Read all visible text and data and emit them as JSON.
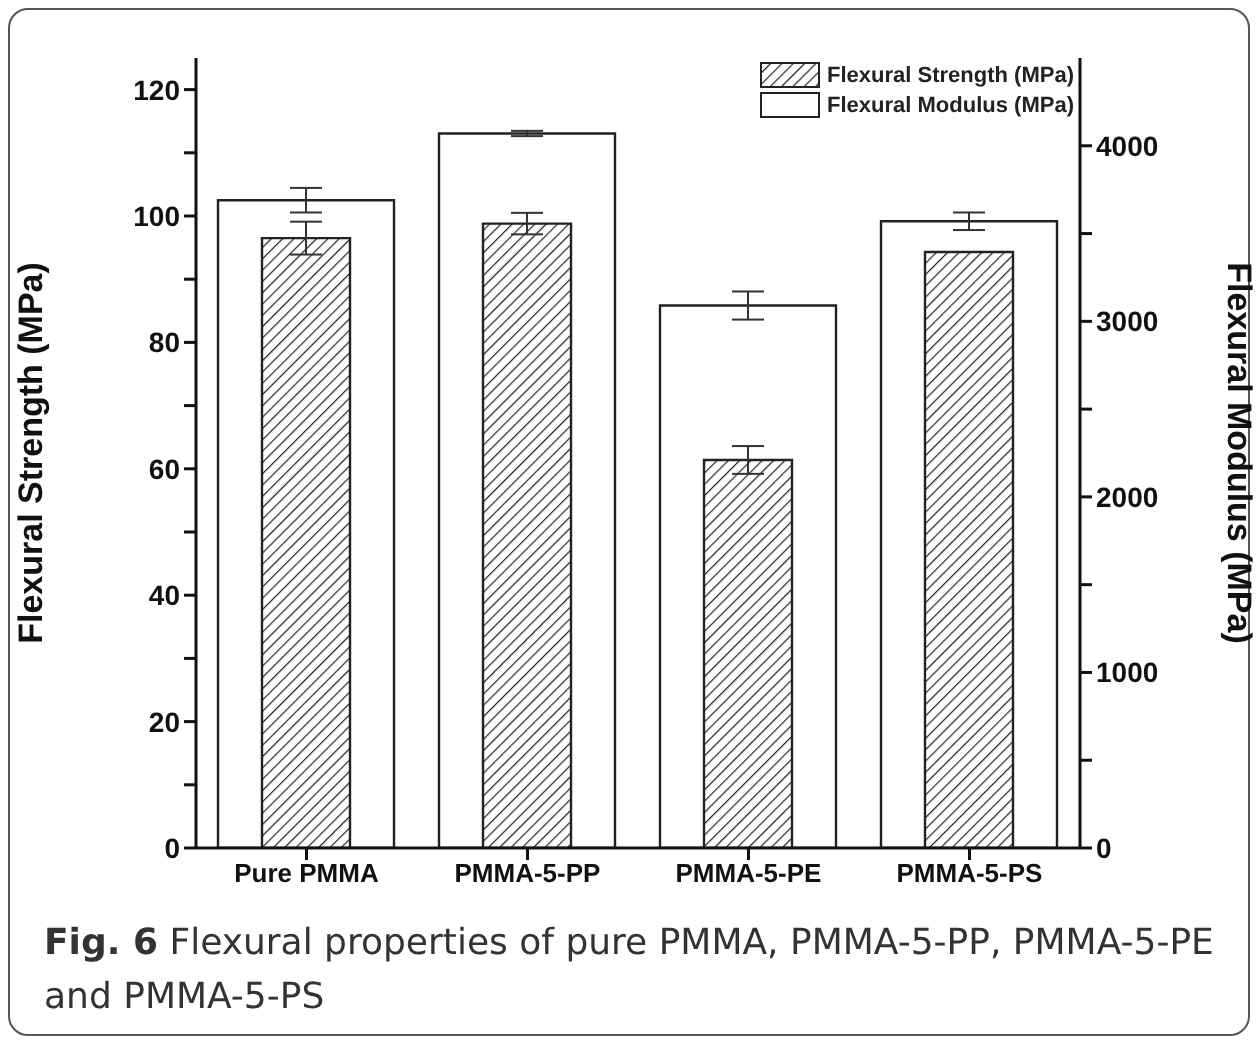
{
  "chart_data": {
    "type": "bar",
    "categories": [
      "Pure PMMA",
      "PMMA-5-PP",
      "PMMA-5-PE",
      "PMMA-5-PS"
    ],
    "series": [
      {
        "name": "Flexural Strength (MPa)",
        "color": "#222222",
        "values": [
          96.5,
          98.8,
          61.4,
          94.3
        ],
        "errors": [
          2.6,
          1.7,
          2.2,
          null
        ]
      },
      {
        "name": "Flexural Modulus (MPa)",
        "color": "#ffffff",
        "axis": "y2",
        "values": [
          3690,
          4070,
          3090,
          3570
        ],
        "errors": [
          70,
          15,
          80,
          50
        ]
      }
    ],
    "ylabel": "Flexural Strength (MPa)",
    "y2label": "Flexural Modulus (MPa)",
    "ylim": [
      0,
      125
    ],
    "yticks": [
      0,
      {
        "value": 10,
        "label": null
      },
      20,
      {
        "value": 30,
        "label": null
      },
      40,
      {
        "value": 50,
        "label": null
      },
      60,
      {
        "value": 70,
        "label": null
      },
      80,
      {
        "value": 90,
        "label": null
      },
      100,
      {
        "value": 110,
        "label": null
      },
      120
    ],
    "y2lim": [
      0,
      4500
    ],
    "y2ticks": [
      0,
      {
        "value": 500,
        "label": null
      },
      1000,
      {
        "value": 1500,
        "label": null
      },
      2000,
      {
        "value": 2500,
        "label": null
      },
      3000,
      {
        "value": 3500,
        "label": null
      },
      4000
    ],
    "legend": "top right",
    "grid": false,
    "annotations": [
      "Fig. 6 Flexural properties of pure PMMA, PMMA-5-PP, PMMA-5-PE and PMMA-5-PS"
    ]
  }
}
